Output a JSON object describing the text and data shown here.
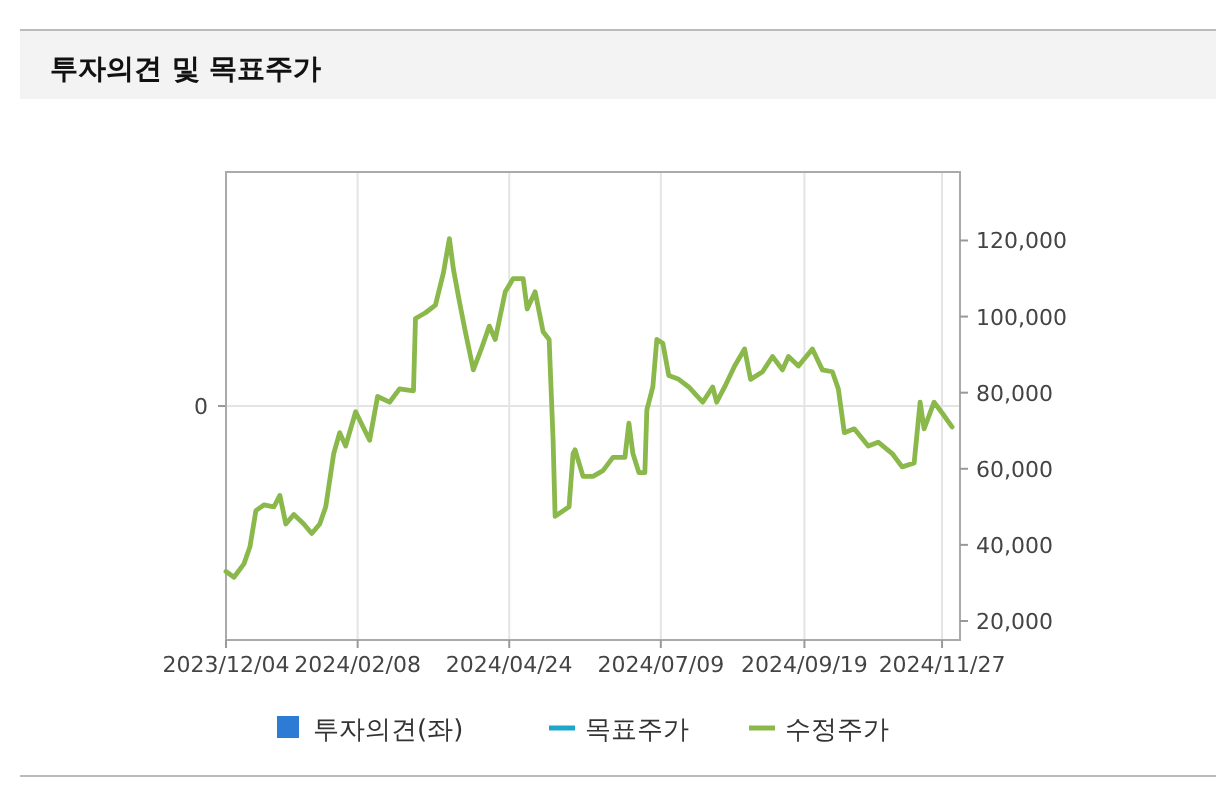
{
  "chart_data": {
    "type": "line",
    "title": "투자의견 및 목표주가",
    "xlim": [
      "2023-12-04",
      "2024-12-06"
    ],
    "xticks": [
      {
        "value": "2023-12-04",
        "label": "2023/12/04"
      },
      {
        "value": "2024-02-08",
        "label": "2024/02/08"
      },
      {
        "value": "2024-04-24",
        "label": "2024/04/24"
      },
      {
        "value": "2024-07-09",
        "label": "2024/07/09"
      },
      {
        "value": "2024-09-19",
        "label": "2024/09/19"
      },
      {
        "value": "2024-11-27",
        "label": "2024/11/27"
      }
    ],
    "annotations": [
      "0"
    ],
    "y2lim": [
      15000,
      138000
    ],
    "y2ticks": [
      {
        "value": 20000,
        "label": "20,000"
      },
      {
        "value": 40000,
        "label": "40,000"
      },
      {
        "value": 60000,
        "label": "60,000"
      },
      {
        "value": 80000,
        "label": "80,000"
      },
      {
        "value": 100000,
        "label": "100,000"
      },
      {
        "value": 120000,
        "label": "120,000"
      }
    ],
    "grid": true,
    "legend": "bottom",
    "series": [
      {
        "name": "투자의견(좌)",
        "type": "bar",
        "color": "#2e7bd6"
      },
      {
        "name": "목표주가",
        "type": "line",
        "color": "#1fa7c9"
      },
      {
        "name": "수정주가",
        "color": "#8ab84a",
        "axis": "y2",
        "x": [
          "2023-12-04",
          "2023-12-08",
          "2023-12-13",
          "2023-12-16",
          "2023-12-19",
          "2023-12-23",
          "2023-12-28",
          "2023-12-31",
          "2024-01-03",
          "2024-01-07",
          "2024-01-12",
          "2024-01-16",
          "2024-01-20",
          "2024-01-23",
          "2024-01-27",
          "2024-01-30",
          "2024-02-02",
          "2024-02-07",
          "2024-02-14",
          "2024-02-18",
          "2024-02-24",
          "2024-02-29",
          "2024-03-07",
          "2024-03-08",
          "2024-03-13",
          "2024-03-18",
          "2024-03-22",
          "2024-03-25",
          "2024-03-27",
          "2024-03-30",
          "2024-04-02",
          "2024-04-06",
          "2024-04-10",
          "2024-04-14",
          "2024-04-17",
          "2024-04-22",
          "2024-04-26",
          "2024-05-01",
          "2024-05-03",
          "2024-05-07",
          "2024-05-11",
          "2024-05-14",
          "2024-05-16",
          "2024-05-17",
          "2024-05-24",
          "2024-05-26",
          "2024-05-27",
          "2024-05-31",
          "2024-06-05",
          "2024-06-10",
          "2024-06-15",
          "2024-06-21",
          "2024-06-23",
          "2024-06-25",
          "2024-06-28",
          "2024-07-01",
          "2024-07-02",
          "2024-07-05",
          "2024-07-07",
          "2024-07-10",
          "2024-07-13",
          "2024-07-18",
          "2024-07-23",
          "2024-07-30",
          "2024-08-04",
          "2024-08-06",
          "2024-08-10",
          "2024-08-15",
          "2024-08-20",
          "2024-08-23",
          "2024-08-29",
          "2024-09-03",
          "2024-09-08",
          "2024-09-11",
          "2024-09-16",
          "2024-09-23",
          "2024-09-28",
          "2024-10-03",
          "2024-10-06",
          "2024-10-09",
          "2024-10-14",
          "2024-10-21",
          "2024-10-26",
          "2024-11-02",
          "2024-11-07",
          "2024-11-13",
          "2024-11-16",
          "2024-11-18",
          "2024-11-23",
          "2024-11-28",
          "2024-12-02"
        ],
        "values": [
          33000,
          31500,
          35000,
          39500,
          49000,
          50500,
          50000,
          53000,
          45500,
          48000,
          45500,
          43000,
          45500,
          50000,
          64000,
          69500,
          66000,
          75000,
          67500,
          79000,
          77500,
          81000,
          80500,
          99500,
          101000,
          103000,
          111500,
          120500,
          112500,
          104000,
          96000,
          86000,
          91500,
          97500,
          94000,
          106500,
          110000,
          110000,
          102000,
          106500,
          96000,
          94000,
          67500,
          47500,
          50000,
          64000,
          65000,
          58000,
          58000,
          59500,
          63000,
          63000,
          72000,
          64000,
          59000,
          59000,
          75500,
          81500,
          94000,
          93000,
          84500,
          83500,
          81500,
          77500,
          81500,
          77500,
          81500,
          87000,
          91500,
          83500,
          85500,
          89500,
          86000,
          89500,
          87000,
          91500,
          86000,
          85500,
          81000,
          69500,
          70500,
          66000,
          67000,
          64000,
          60500,
          61500,
          77500,
          70500,
          77500,
          74000,
          71000
        ]
      }
    ]
  }
}
